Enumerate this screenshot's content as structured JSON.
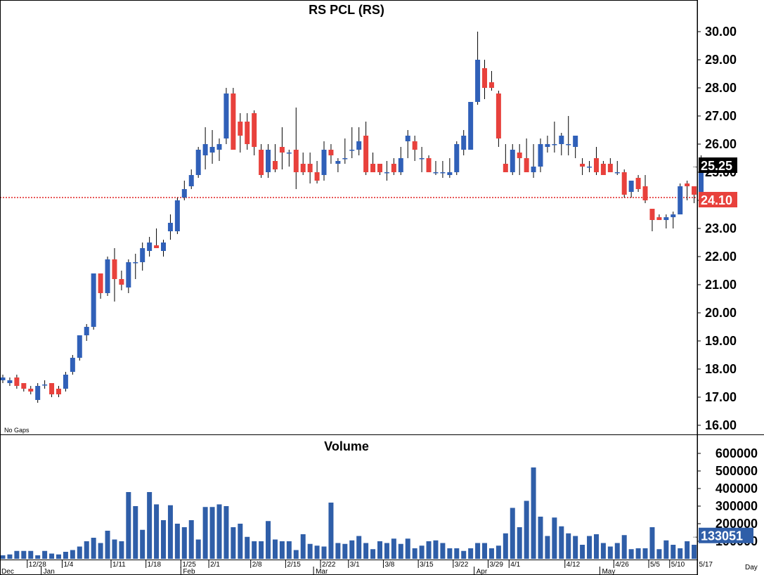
{
  "title": "RS  PCL  (RS)",
  "note": "No  Gaps",
  "timeframe": "Day",
  "colors": {
    "up": "#3060b8",
    "down": "#e8413c",
    "last_tag": "#000000",
    "ref_tag": "#e8413c",
    "vol_tag": "#2f5ea8",
    "ref_line": "#e02020"
  },
  "chart_data": [
    {
      "type": "candlestick",
      "title": "RS  PCL  (RS)",
      "ylim": [
        15.6,
        30.6
      ],
      "y_ticks": [
        "16.00",
        "17.00",
        "18.00",
        "19.00",
        "20.00",
        "21.00",
        "22.00",
        "23.00",
        "24.00",
        "25.00",
        "26.00",
        "27.00",
        "28.00",
        "29.00",
        "30.00"
      ],
      "last_price": "25.25",
      "reference_line": {
        "value": 24.1,
        "label": "24.10"
      },
      "x_ticks": [
        "12/28",
        "1/4",
        "1/11",
        "1/18",
        "1/25",
        "2/1",
        "2/8",
        "2/15",
        "2/22",
        "3/1",
        "3/8",
        "3/15",
        "3/22",
        "3/29",
        "4/1",
        "4/12",
        "4/26",
        "5/5",
        "5/10",
        "5/17"
      ],
      "months": [
        "Dec",
        "Jan",
        "Feb",
        "Mar",
        "Apr",
        "May"
      ],
      "ohlc": [
        [
          17.6,
          17.8,
          17.5,
          17.7
        ],
        [
          17.5,
          17.7,
          17.4,
          17.6
        ],
        [
          17.7,
          17.8,
          17.3,
          17.4
        ],
        [
          17.5,
          17.5,
          17.2,
          17.3
        ],
        [
          17.3,
          17.4,
          17.1,
          17.2
        ],
        [
          16.9,
          17.5,
          16.8,
          17.4
        ],
        [
          17.45,
          17.6,
          17.3,
          17.45
        ],
        [
          17.5,
          17.5,
          17.0,
          17.1
        ],
        [
          17.3,
          17.4,
          17.0,
          17.1
        ],
        [
          17.3,
          17.9,
          17.2,
          17.8
        ],
        [
          17.9,
          18.5,
          17.8,
          18.4
        ],
        [
          18.4,
          19.2,
          18.3,
          19.2
        ],
        [
          19.2,
          19.6,
          19.0,
          19.5
        ],
        [
          19.5,
          21.4,
          19.4,
          21.4
        ],
        [
          21.4,
          21.4,
          20.5,
          20.7
        ],
        [
          20.7,
          22.0,
          20.6,
          21.9
        ],
        [
          21.9,
          22.3,
          20.4,
          21.2
        ],
        [
          21.2,
          21.5,
          20.8,
          21.0
        ],
        [
          20.9,
          21.9,
          20.7,
          21.8
        ],
        [
          21.8,
          22.1,
          21.2,
          21.8
        ],
        [
          21.8,
          22.5,
          21.5,
          22.3
        ],
        [
          22.2,
          22.7,
          22.0,
          22.5
        ],
        [
          22.4,
          23.0,
          22.3,
          22.3
        ],
        [
          22.2,
          22.6,
          22.0,
          22.5
        ],
        [
          22.9,
          23.5,
          22.6,
          23.2
        ],
        [
          22.9,
          24.1,
          22.8,
          24.0
        ],
        [
          24.1,
          24.7,
          24.0,
          24.4
        ],
        [
          24.5,
          25.1,
          24.4,
          24.9
        ],
        [
          24.9,
          25.9,
          24.8,
          25.8
        ],
        [
          25.6,
          26.6,
          25.1,
          26.0
        ],
        [
          25.7,
          26.5,
          25.3,
          25.9
        ],
        [
          25.8,
          26.2,
          25.4,
          26.0
        ],
        [
          26.2,
          28.0,
          26.0,
          27.8
        ],
        [
          27.8,
          28.0,
          25.9,
          25.8
        ],
        [
          26.8,
          27.1,
          25.7,
          26.3
        ],
        [
          26.8,
          27.1,
          25.8,
          26.0
        ],
        [
          27.1,
          27.2,
          25.6,
          25.9
        ],
        [
          25.8,
          26.0,
          24.8,
          24.9
        ],
        [
          25.0,
          26.0,
          24.8,
          25.8
        ],
        [
          25.4,
          26.0,
          25.0,
          25.1
        ],
        [
          25.9,
          26.6,
          25.1,
          25.7
        ],
        [
          25.7,
          25.8,
          25.2,
          25.7
        ],
        [
          25.8,
          27.3,
          24.4,
          25.0
        ],
        [
          25.3,
          25.7,
          24.9,
          25.0
        ],
        [
          25.3,
          25.7,
          24.6,
          25.0
        ],
        [
          25.0,
          25.4,
          24.6,
          24.7
        ],
        [
          24.9,
          26.1,
          24.7,
          25.8
        ],
        [
          25.8,
          26.0,
          25.3,
          25.6
        ],
        [
          25.3,
          25.5,
          25.0,
          25.4
        ],
        [
          25.5,
          26.2,
          25.3,
          25.5
        ],
        [
          25.8,
          26.6,
          25.5,
          25.8
        ],
        [
          25.8,
          26.6,
          25.6,
          26.1
        ],
        [
          26.3,
          26.8,
          24.9,
          25.0
        ],
        [
          25.3,
          25.7,
          25.0,
          25.0
        ],
        [
          25.3,
          25.3,
          24.9,
          25.0
        ],
        [
          25.0,
          25.4,
          24.7,
          25.0
        ],
        [
          25.3,
          25.5,
          24.9,
          25.0
        ],
        [
          25.0,
          25.9,
          24.9,
          25.5
        ],
        [
          26.1,
          26.5,
          25.5,
          26.3
        ],
        [
          26.1,
          26.3,
          25.4,
          25.8
        ],
        [
          25.5,
          25.9,
          25.0,
          25.5
        ],
        [
          25.5,
          25.6,
          25.0,
          25.0
        ],
        [
          25.0,
          25.4,
          24.9,
          25.0
        ],
        [
          25.0,
          25.4,
          24.8,
          25.0
        ],
        [
          24.9,
          25.5,
          24.8,
          25.0
        ],
        [
          25.0,
          26.1,
          24.9,
          26.0
        ],
        [
          25.8,
          26.5,
          25.6,
          26.3
        ],
        [
          25.8,
          27.5,
          25.8,
          27.5
        ],
        [
          27.5,
          30.0,
          27.4,
          29.0
        ],
        [
          28.7,
          29.0,
          27.6,
          28.0
        ],
        [
          28.2,
          28.6,
          27.9,
          28.0
        ],
        [
          27.8,
          27.9,
          25.9,
          26.2
        ],
        [
          25.3,
          26.0,
          25.0,
          25.0
        ],
        [
          25.0,
          26.0,
          24.9,
          25.8
        ],
        [
          25.7,
          26.0,
          24.9,
          25.5
        ],
        [
          25.5,
          26.2,
          25.0,
          25.0
        ],
        [
          25.0,
          26.0,
          24.8,
          25.2
        ],
        [
          25.2,
          26.2,
          25.0,
          26.0
        ],
        [
          25.9,
          26.3,
          25.7,
          26.0
        ],
        [
          26.0,
          26.8,
          25.7,
          26.0
        ],
        [
          26.0,
          26.4,
          25.6,
          26.3
        ],
        [
          26.0,
          27.0,
          25.6,
          26.0
        ],
        [
          25.9,
          26.3,
          25.5,
          26.3
        ],
        [
          25.3,
          25.5,
          24.9,
          25.2
        ],
        [
          25.2,
          25.4,
          25.0,
          25.2
        ],
        [
          25.5,
          25.9,
          24.9,
          25.0
        ],
        [
          25.3,
          25.4,
          24.9,
          24.9
        ],
        [
          25.3,
          25.5,
          25.0,
          25.0
        ],
        [
          25.0,
          25.4,
          24.9,
          25.0
        ],
        [
          25.0,
          25.1,
          24.1,
          24.2
        ],
        [
          24.3,
          24.6,
          24.1,
          24.7
        ],
        [
          24.8,
          24.9,
          24.3,
          24.4
        ],
        [
          24.5,
          24.9,
          23.9,
          24.0
        ],
        [
          23.7,
          23.7,
          22.9,
          23.3
        ],
        [
          23.4,
          23.5,
          23.3,
          23.3
        ],
        [
          23.3,
          23.5,
          23.0,
          23.4
        ],
        [
          23.4,
          23.6,
          23.0,
          23.5
        ],
        [
          23.5,
          24.6,
          23.5,
          24.5
        ],
        [
          24.6,
          24.7,
          24.0,
          24.5
        ],
        [
          24.5,
          24.5,
          23.9,
          24.2
        ],
        [
          24.3,
          25.6,
          24.2,
          25.25
        ]
      ]
    },
    {
      "type": "bar",
      "title": "Volume",
      "ylim": [
        0,
        700000
      ],
      "y_ticks": [
        "100000",
        "200000",
        "300000",
        "400000",
        "500000",
        "600000"
      ],
      "last_value": "133051",
      "values": [
        20000,
        25000,
        45000,
        45000,
        45000,
        20000,
        45000,
        30000,
        25000,
        40000,
        50000,
        70000,
        100000,
        120000,
        90000,
        160000,
        110000,
        100000,
        380000,
        300000,
        165000,
        380000,
        310000,
        220000,
        305000,
        200000,
        180000,
        220000,
        110000,
        295000,
        295000,
        310000,
        300000,
        180000,
        200000,
        125000,
        100000,
        100000,
        215000,
        110000,
        100000,
        100000,
        50000,
        140000,
        85000,
        75000,
        70000,
        320000,
        90000,
        85000,
        105000,
        130000,
        90000,
        55000,
        100000,
        90000,
        115000,
        85000,
        115000,
        60000,
        75000,
        100000,
        105000,
        90000,
        60000,
        60000,
        45000,
        60000,
        90000,
        90000,
        60000,
        75000,
        145000,
        290000,
        180000,
        330000,
        520000,
        240000,
        130000,
        235000,
        185000,
        145000,
        130000,
        80000,
        130000,
        140000,
        90000,
        70000,
        90000,
        135000,
        55000,
        60000,
        60000,
        180000,
        55000,
        105000,
        80000,
        60000,
        100000,
        80000
      ]
    }
  ]
}
